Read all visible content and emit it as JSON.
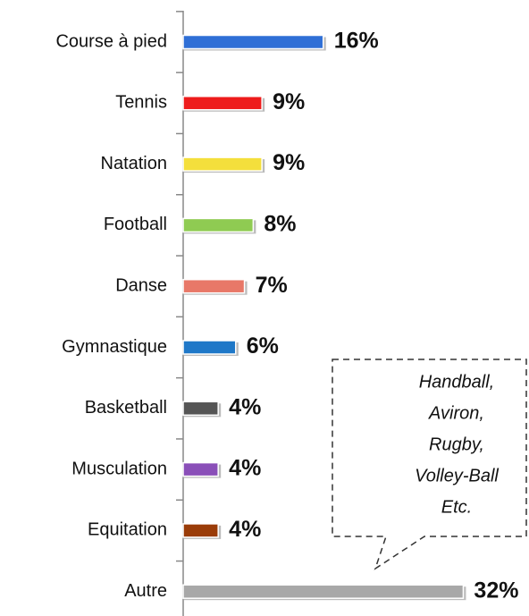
{
  "chart_data": {
    "type": "hbar",
    "categories": [
      "Course à pied",
      "Tennis",
      "Natation",
      "Football",
      "Danse",
      "Gymnastique",
      "Basketball",
      "Musculation",
      "Equitation",
      "Autre"
    ],
    "values": [
      16,
      9,
      9,
      8,
      7,
      6,
      4,
      4,
      4,
      32
    ],
    "value_labels": [
      "16%",
      "9%",
      "9%",
      "8%",
      "7%",
      "6%",
      "4%",
      "4%",
      "4%",
      "32%"
    ],
    "colors": [
      "#2f6fd6",
      "#ee1c1c",
      "#f4df3c",
      "#8fcb52",
      "#e87868",
      "#1f78c8",
      "#555555",
      "#8a4fb8",
      "#9a3c08",
      "#a8a8a8"
    ],
    "xlim": [
      0,
      39
    ],
    "annotation": [
      "Handball,",
      "Aviron,",
      "Rugby,",
      "Volley-Ball",
      "Etc."
    ]
  }
}
